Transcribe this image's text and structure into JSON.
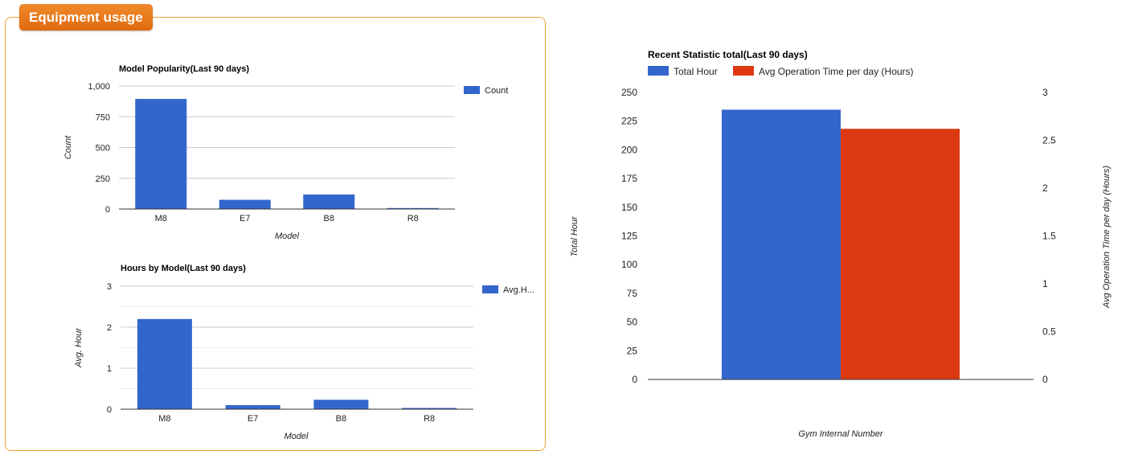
{
  "panel": {
    "title": "Equipment usage"
  },
  "chart_data": [
    {
      "id": "popularity",
      "type": "bar",
      "title": "Model Popularity(Last 90 days)",
      "categories": [
        "M8",
        "E7",
        "B8",
        "R8"
      ],
      "series": [
        {
          "name": "Count",
          "values": [
            895,
            75,
            118,
            8
          ],
          "color": "#3366cc"
        }
      ],
      "xlabel": "Model",
      "ylabel": "Count",
      "ylim": [
        0,
        1000
      ],
      "yticks": [
        "0",
        "250",
        "500",
        "750",
        "1,000"
      ],
      "grid": true,
      "legend": "right"
    },
    {
      "id": "hours",
      "type": "bar",
      "title": "Hours by Model(Last 90 days)",
      "categories": [
        "M8",
        "E7",
        "B8",
        "R8"
      ],
      "series": [
        {
          "name": "Avg.H...",
          "values": [
            2.2,
            0.1,
            0.23,
            0.03
          ],
          "color": "#3366cc"
        }
      ],
      "xlabel": "Model",
      "ylabel": "Avg. Hour",
      "ylim": [
        0,
        3
      ],
      "yticks": [
        "0",
        "1",
        "2",
        "3"
      ],
      "grid": true,
      "legend": "right"
    },
    {
      "id": "recent",
      "type": "bar",
      "title": "Recent Statistic total(Last 90 days)",
      "categories": [
        ""
      ],
      "series": [
        {
          "name": "Total Hour",
          "values": [
            235
          ],
          "color": "#3366cc",
          "axis": "left"
        },
        {
          "name": "Avg Operation Time per day (Hours)",
          "values": [
            2.62
          ],
          "color": "#dc3912",
          "axis": "right"
        }
      ],
      "xlabel": "Gym Internal Number",
      "ylabel": "Total Hour",
      "ylabel_right": "Avg Operation Time per day (Hours)",
      "ylim": [
        0,
        250
      ],
      "ylim_right": [
        0,
        3
      ],
      "yticks": [
        "0",
        "25",
        "50",
        "75",
        "100",
        "125",
        "150",
        "175",
        "200",
        "225",
        "250"
      ],
      "yticks_right": [
        "0",
        "0.5",
        "1",
        "1.5",
        "2",
        "2.5",
        "3"
      ],
      "grid": false,
      "legend": "top"
    }
  ]
}
